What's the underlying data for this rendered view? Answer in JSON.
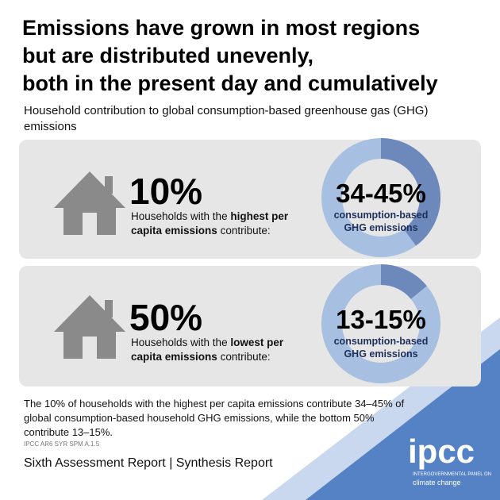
{
  "header": {
    "title_lines": [
      "Emissions have grown in most regions",
      "but are distributed unevenly,",
      "both in the present day and cumulatively"
    ],
    "subtitle": "Household contribution to global consumption-based greenhouse gas (GHG) emissions"
  },
  "panels": [
    {
      "percent": "10%",
      "description": {
        "before": "Households with the ",
        "bold": "highest per capita emissions",
        "after": " contribute:"
      },
      "range": "34-45%",
      "caption": "consumption-based GHG emissions",
      "share": 40
    },
    {
      "percent": "50%",
      "description": {
        "before": "Households with the ",
        "bold": "lowest per capita emissions",
        "after": " contribute:"
      },
      "range": "13-15%",
      "caption": "consumption-based GHG emissions",
      "share": 14
    }
  ],
  "footer": {
    "summary": "The 10% of households with the highest per capita emissions contribute 34–45% of global consumption-based household GHG emissions, while the bottom 50% contribute 13–15%.",
    "source": "IPCC AR6 SYR SPM A.1.5",
    "report": "Sixth Assessment Report | Synthesis Report",
    "logo": "ipcc",
    "logo_sub1": "INTERGOVERNMENTAL PANEL ON",
    "logo_sub2": "climate change"
  }
}
